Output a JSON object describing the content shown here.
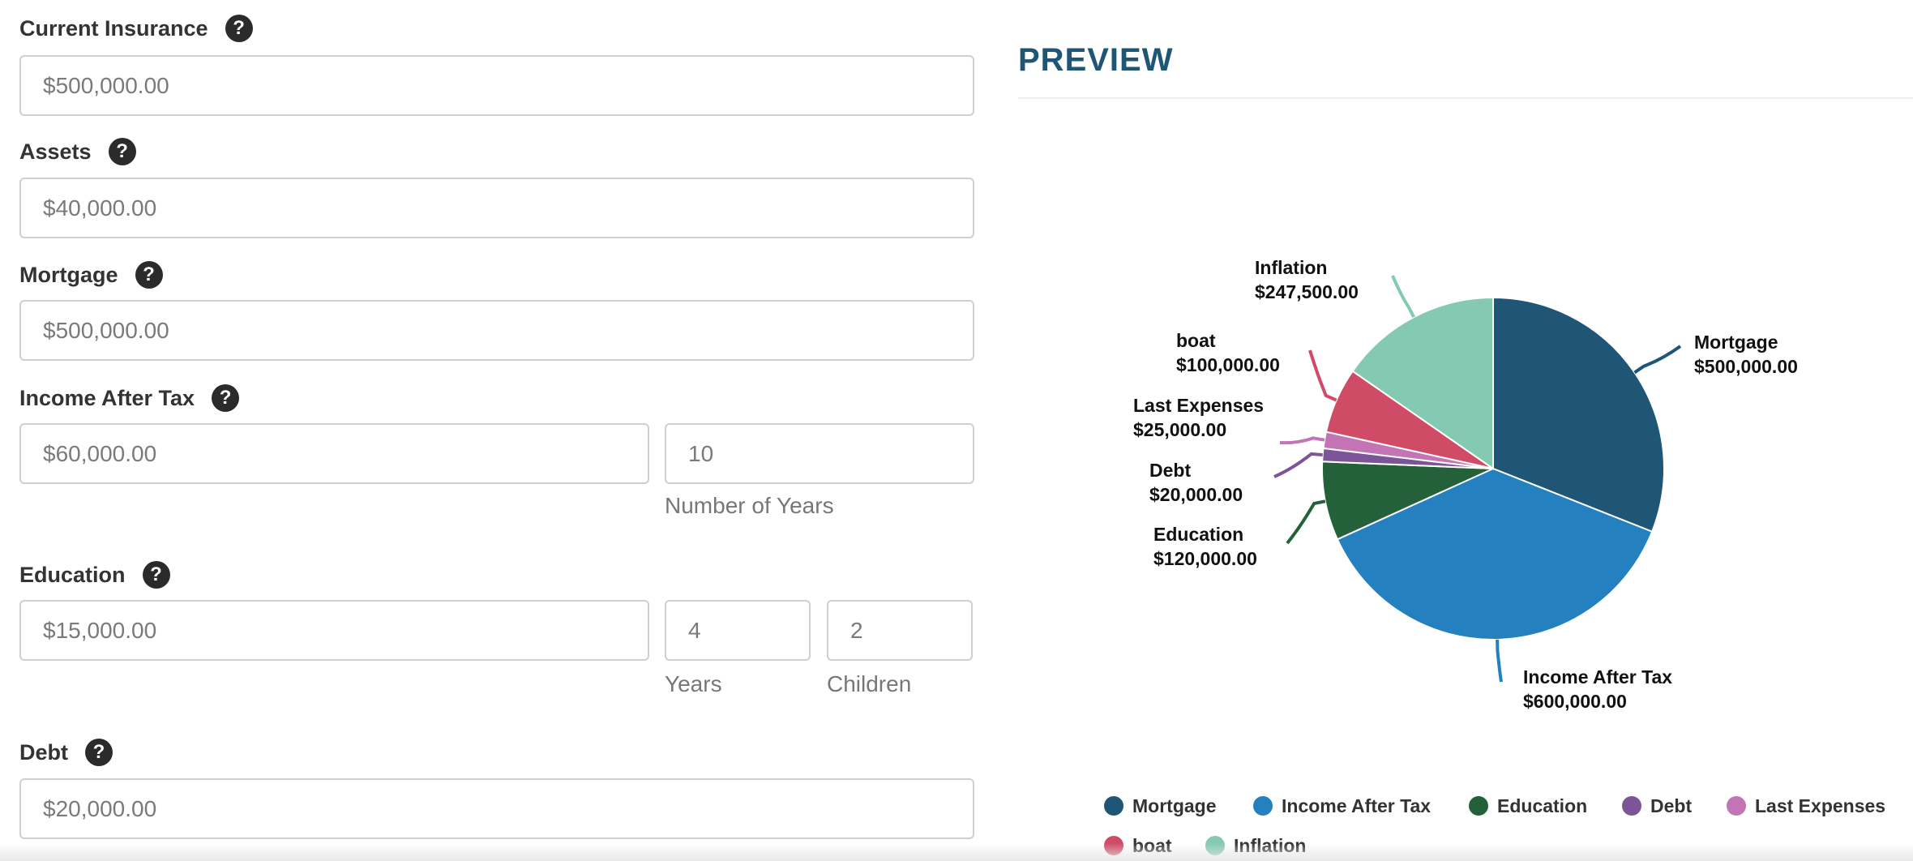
{
  "form": {
    "current_insurance": {
      "label": "Current Insurance",
      "value": "$500,000.00"
    },
    "assets": {
      "label": "Assets",
      "value": "$40,000.00"
    },
    "mortgage": {
      "label": "Mortgage",
      "value": "$500,000.00"
    },
    "income_after_tax": {
      "label": "Income After Tax",
      "value": "$60,000.00",
      "years_value": "10",
      "years_label": "Number of Years"
    },
    "education": {
      "label": "Education",
      "value": "$15,000.00",
      "years_value": "4",
      "years_label": "Years",
      "children_value": "2",
      "children_label": "Children"
    },
    "debt": {
      "label": "Debt",
      "value": "$20,000.00"
    },
    "help_glyph": "?"
  },
  "preview": {
    "title": "PREVIEW"
  },
  "chart_data": {
    "type": "pie",
    "slices": [
      {
        "name": "Mortgage",
        "value": 500000,
        "display": "$500,000.00",
        "color": "#1f5675"
      },
      {
        "name": "Income After Tax",
        "value": 600000,
        "display": "$600,000.00",
        "color": "#2480bf"
      },
      {
        "name": "Education",
        "value": 120000,
        "display": "$120,000.00",
        "color": "#24603a"
      },
      {
        "name": "Debt",
        "value": 20000,
        "display": "$20,000.00",
        "color": "#7b5598"
      },
      {
        "name": "Last Expenses",
        "value": 25000,
        "display": "$25,000.00",
        "color": "#c274b4"
      },
      {
        "name": "boat",
        "value": 100000,
        "display": "$100,000.00",
        "color": "#cf4b66"
      },
      {
        "name": "Inflation",
        "value": 247500,
        "display": "$247,500.00",
        "color": "#84c9b1"
      }
    ],
    "legend_position": "bottom"
  }
}
